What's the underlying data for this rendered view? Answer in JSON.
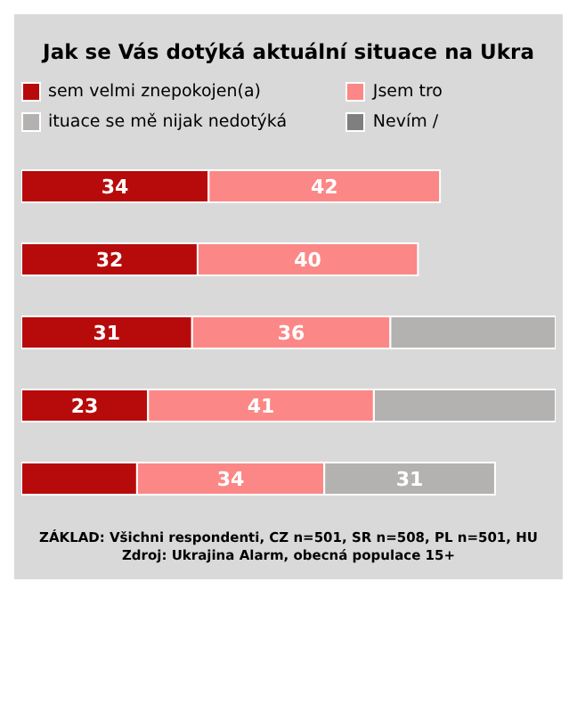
{
  "chart_data": {
    "type": "bar",
    "orientation": "horizontal",
    "stacked": true,
    "title": "Jak se Vás dotýká aktuální situace na Ukra",
    "categories": [
      null,
      null,
      null,
      null,
      null
    ],
    "tick_labels": false,
    "legend": "top",
    "series": [
      {
        "name": "sem velmi znepokojen(a)",
        "color": "#b70b0b",
        "values": [
          34,
          32,
          31,
          23,
          21
        ],
        "value_labels": [
          "34",
          "32",
          "31",
          "23",
          null
        ]
      },
      {
        "name": "Jsem tro",
        "color": "#fb8886",
        "values": [
          42,
          40,
          36,
          41,
          34
        ],
        "value_labels": [
          "42",
          "40",
          "36",
          "41",
          "34"
        ]
      },
      {
        "name": "ituace se mě nijak nedotýká",
        "color": "#b3b2b0",
        "values": [
          null,
          null,
          30,
          33,
          31
        ],
        "value_labels": [
          null,
          null,
          null,
          null,
          "31"
        ]
      },
      {
        "name": "Nevím /",
        "color": "#7f7f7f",
        "values": [
          null,
          null,
          null,
          null,
          null
        ]
      }
    ],
    "annotations": [
      "ZÁKLAD: Všichni respondenti, CZ n=501, SR n=508, PL n=501, HU",
      "Zdroj: Ukrajina Alarm, obecná populace 15+"
    ]
  }
}
